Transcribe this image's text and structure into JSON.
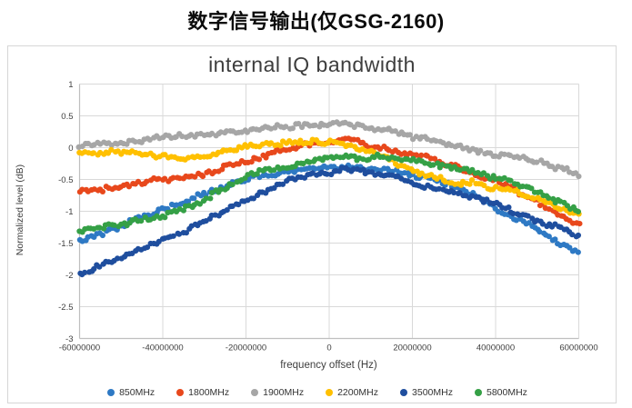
{
  "page_title": "数字信号输出(仅GSG-2160)",
  "chart_data": {
    "type": "scatter",
    "title": "internal IQ bandwidth",
    "xlabel": "frequency offset (Hz)",
    "ylabel": "Normalized level (dB)",
    "xlim": [
      -60000000,
      60000000
    ],
    "ylim": [
      -3,
      1
    ],
    "grid": true,
    "legend_position": "bottom",
    "x_tick_values": [
      -60000000,
      -40000000,
      -20000000,
      0,
      20000000,
      40000000,
      60000000
    ],
    "x_tick_labels": [
      "-60000000",
      "-40000000",
      "-20000000",
      "0",
      "20000000",
      "40000000",
      "60000000"
    ],
    "y_tick_values": [
      1,
      0.5,
      0,
      -0.5,
      -1,
      -1.5,
      -2,
      -2.5,
      -3
    ],
    "y_tick_labels": [
      "1",
      "0.5",
      "0",
      "-0.5",
      "-1",
      "-1.5",
      "-2",
      "-2.5",
      "-3"
    ],
    "x": [
      -60000000,
      -55000000,
      -50000000,
      -45000000,
      -40000000,
      -35000000,
      -30000000,
      -25000000,
      -20000000,
      -15000000,
      -10000000,
      -5000000,
      0,
      5000000,
      10000000,
      15000000,
      20000000,
      25000000,
      30000000,
      35000000,
      40000000,
      45000000,
      50000000,
      55000000,
      60000000
    ],
    "series": [
      {
        "name": "850MHz",
        "color": "#2E79C4",
        "values": [
          -1.48,
          -1.38,
          -1.26,
          -1.12,
          -0.98,
          -0.88,
          -0.79,
          -0.67,
          -0.55,
          -0.45,
          -0.37,
          -0.32,
          -0.29,
          -0.31,
          -0.35,
          -0.41,
          -0.48,
          -0.56,
          -0.66,
          -0.8,
          -0.98,
          -1.15,
          -1.33,
          -1.52,
          -1.7
        ]
      },
      {
        "name": "1800MHz",
        "color": "#E8481C",
        "values": [
          -0.67,
          -0.62,
          -0.57,
          -0.52,
          -0.48,
          -0.43,
          -0.36,
          -0.27,
          -0.17,
          -0.08,
          0.0,
          0.05,
          0.08,
          0.1,
          0.03,
          -0.05,
          -0.11,
          -0.18,
          -0.28,
          -0.4,
          -0.52,
          -0.66,
          -0.85,
          -1.05,
          -1.2
        ]
      },
      {
        "name": "1900MHz",
        "color": "#A6A6A6",
        "values": [
          0.05,
          0.09,
          0.13,
          0.17,
          0.2,
          0.23,
          0.26,
          0.29,
          0.31,
          0.33,
          0.34,
          0.36,
          0.37,
          0.38,
          0.36,
          0.3,
          0.22,
          0.16,
          0.1,
          0.02,
          -0.08,
          -0.12,
          -0.22,
          -0.3,
          -0.4
        ]
      },
      {
        "name": "2200MHz",
        "color": "#FFC000",
        "values": [
          -0.08,
          -0.1,
          -0.12,
          -0.13,
          -0.12,
          -0.14,
          -0.12,
          -0.06,
          0.0,
          0.03,
          0.04,
          0.04,
          0.05,
          0.02,
          -0.08,
          -0.22,
          -0.37,
          -0.45,
          -0.52,
          -0.5,
          -0.62,
          -0.72,
          -0.84,
          -0.96,
          -1.05
        ]
      },
      {
        "name": "3500MHz",
        "color": "#1F4E9E",
        "values": [
          -2.0,
          -1.9,
          -1.78,
          -1.64,
          -1.5,
          -1.36,
          -1.2,
          -1.02,
          -0.85,
          -0.68,
          -0.55,
          -0.46,
          -0.41,
          -0.39,
          -0.43,
          -0.5,
          -0.58,
          -0.66,
          -0.74,
          -0.82,
          -0.92,
          -1.04,
          -1.16,
          -1.3,
          -1.45
        ]
      },
      {
        "name": "5800MHz",
        "color": "#35A046",
        "values": [
          -1.33,
          -1.28,
          -1.22,
          -1.16,
          -1.08,
          -0.98,
          -0.84,
          -0.64,
          -0.44,
          -0.32,
          -0.24,
          -0.18,
          -0.16,
          -0.15,
          -0.17,
          -0.19,
          -0.22,
          -0.28,
          -0.35,
          -0.42,
          -0.52,
          -0.6,
          -0.72,
          -0.86,
          -1.0
        ]
      }
    ],
    "colors": {
      "grid": "#d9d9d9",
      "axis_line": "#bfbfbf",
      "tick_text": "#404040"
    }
  }
}
